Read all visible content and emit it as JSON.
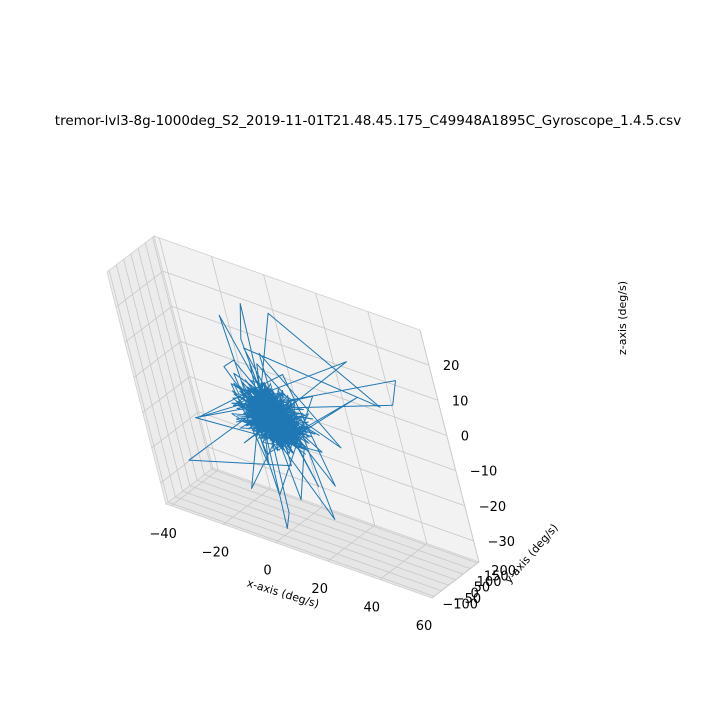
{
  "chart_data": {
    "type": "line3d",
    "title": "tremor-lvl3-8g-1000deg_S2_2019-11-01T21.48.45.175_C49948A1895C_Gyroscope_1.4.5.csv",
    "xlabel": "x-axis (deg/s)",
    "ylabel": "y-axis (deg/s)",
    "zlabel": "z-axis (deg/s)",
    "xticks": [
      -40,
      -20,
      0,
      20,
      40,
      60
    ],
    "yticks": [
      -100,
      -50,
      0,
      50,
      100,
      150,
      200
    ],
    "zticks": [
      -30,
      -20,
      -10,
      0,
      10,
      20
    ],
    "xlim": [
      -42,
      60
    ],
    "ylim": [
      -115,
      210
    ],
    "zlim": [
      -36,
      30
    ],
    "grid": true,
    "series_color": "#1f77b4",
    "trace": {
      "x": [
        -8,
        12,
        35,
        2,
        -10,
        25,
        -3,
        8,
        -28,
        6,
        10,
        -5,
        30,
        -12,
        4,
        18,
        -6,
        40,
        0,
        -9,
        14,
        3,
        -20,
        9,
        28,
        1,
        -15,
        5,
        20,
        -2,
        47,
        45,
        -25,
        10,
        4,
        -7,
        -2,
        2,
        2.5,
        -2.2,
        15,
        9,
        -16,
        -12,
        22,
        6,
        0,
        3,
        -10,
        18
      ],
      "y": [
        20,
        -40,
        90,
        -60,
        30,
        60,
        110,
        -20,
        -110,
        40,
        10,
        -80,
        150,
        20,
        0,
        -30,
        70,
        140,
        180,
        -50,
        10,
        90,
        -100,
        50,
        -70,
        20,
        100,
        -90,
        40,
        0,
        120,
        200,
        -50,
        150,
        -30,
        80,
        60,
        -20,
        -60,
        30,
        -110,
        70,
        130,
        10,
        -40,
        90,
        40,
        -80,
        0,
        50
      ],
      "z": [
        2,
        -5,
        8,
        -12,
        5,
        -8,
        10,
        -15,
        -20,
        3,
        0,
        -10,
        15,
        -4,
        7,
        -18,
        12,
        5,
        20,
        -25,
        4,
        1,
        -6,
        9,
        -14,
        2,
        18,
        -22,
        6,
        -2,
        8,
        12,
        -9,
        -16,
        3,
        14,
        26,
        -30,
        -33,
        10,
        -20,
        -12,
        4,
        7,
        -26,
        0,
        10,
        -14,
        3,
        -6
      ]
    }
  }
}
